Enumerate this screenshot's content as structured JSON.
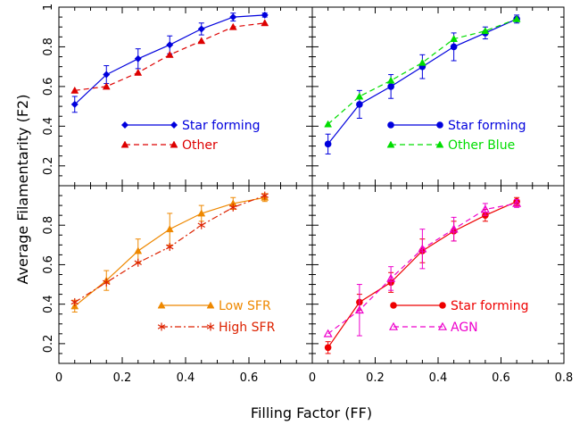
{
  "figure": {
    "xlabel": "Filling Factor (FF)",
    "ylabel": "Average Filamentarity (F2)"
  },
  "chart_data": [
    {
      "type": "line",
      "panel": "top-left",
      "xlim": [
        0,
        0.8
      ],
      "ylim": [
        0.1,
        1.0
      ],
      "x_ticks": [
        "0",
        "0.2",
        "0.4",
        "0.6",
        "0.8"
      ],
      "y_ticks": [
        0.2,
        0.4,
        0.6,
        0.8,
        1
      ],
      "y_tick_labels": [
        "0.2",
        "0.4",
        "0.6",
        "0.8",
        "1"
      ],
      "show_x_tick_labels": false,
      "legend_placement": "center-left",
      "series": [
        {
          "name": "Star forming",
          "color": "#0000dd",
          "dash": "solid",
          "marker": "diamond",
          "x": [
            0.05,
            0.15,
            0.25,
            0.35,
            0.45,
            0.55,
            0.65
          ],
          "y": [
            0.51,
            0.66,
            0.74,
            0.81,
            0.89,
            0.95,
            0.96
          ],
          "err": [
            0.04,
            0.045,
            0.05,
            0.045,
            0.03,
            0.02,
            0.01
          ]
        },
        {
          "name": "Other",
          "color": "#dd0000",
          "dash": "dashed",
          "marker": "triangle",
          "x": [
            0.05,
            0.15,
            0.25,
            0.35,
            0.45,
            0.55,
            0.65
          ],
          "y": [
            0.58,
            0.6,
            0.67,
            0.76,
            0.83,
            0.9,
            0.92
          ],
          "err": []
        }
      ]
    },
    {
      "type": "line",
      "panel": "top-right",
      "xlim": [
        0,
        0.8
      ],
      "ylim": [
        0.1,
        1.0
      ],
      "x_ticks": [
        "0",
        "0.2",
        "0.4",
        "0.6",
        "0.8"
      ],
      "y_ticks": [
        0.2,
        0.4,
        0.6,
        0.8,
        1
      ],
      "show_x_tick_labels": false,
      "show_y_tick_labels": false,
      "legend_placement": "center",
      "series": [
        {
          "name": "Star forming",
          "color": "#0000dd",
          "dash": "solid",
          "marker": "circle",
          "x": [
            0.05,
            0.15,
            0.25,
            0.35,
            0.45,
            0.55,
            0.65
          ],
          "y": [
            0.31,
            0.51,
            0.6,
            0.7,
            0.8,
            0.87,
            0.94
          ],
          "err": [
            0.05,
            0.07,
            0.06,
            0.06,
            0.07,
            0.03,
            0.02
          ]
        },
        {
          "name": "Other Blue",
          "color": "#00dd00",
          "dash": "dashed",
          "marker": "triangle",
          "x": [
            0.05,
            0.15,
            0.25,
            0.35,
            0.45,
            0.55,
            0.65
          ],
          "y": [
            0.41,
            0.55,
            0.63,
            0.72,
            0.84,
            0.88,
            0.94
          ],
          "err": []
        }
      ]
    },
    {
      "type": "line",
      "panel": "bottom-left",
      "xlim": [
        0,
        0.8
      ],
      "ylim": [
        0.1,
        1.0
      ],
      "x_ticks": [
        "0",
        "0.2",
        "0.4",
        "0.6"
      ],
      "y_ticks": [
        0.2,
        0.4,
        0.6,
        0.8
      ],
      "y_tick_labels": [
        "0.2",
        "0.4",
        "0.6",
        "0.8"
      ],
      "legend_placement": "lower-center",
      "series": [
        {
          "name": "Low SFR",
          "color": "#ee8800",
          "dash": "solid",
          "marker": "triangle",
          "x": [
            0.05,
            0.15,
            0.25,
            0.35,
            0.45,
            0.55,
            0.65
          ],
          "y": [
            0.39,
            0.52,
            0.67,
            0.78,
            0.86,
            0.91,
            0.94
          ],
          "err": [
            0.03,
            0.05,
            0.06,
            0.08,
            0.04,
            0.03,
            0.02
          ]
        },
        {
          "name": "High SFR",
          "color": "#dd2200",
          "dash": "dashdot",
          "marker": "asterisk",
          "x": [
            0.05,
            0.15,
            0.25,
            0.35,
            0.45,
            0.55,
            0.65
          ],
          "y": [
            0.41,
            0.51,
            0.61,
            0.69,
            0.8,
            0.89,
            0.95
          ],
          "err": []
        }
      ]
    },
    {
      "type": "line",
      "panel": "bottom-right",
      "xlim": [
        0,
        0.8
      ],
      "ylim": [
        0.1,
        1.0
      ],
      "x_ticks": [
        "0",
        "0.2",
        "0.4",
        "0.6",
        "0.8"
      ],
      "y_ticks": [
        0.2,
        0.4,
        0.6,
        0.8
      ],
      "show_y_tick_labels": false,
      "legend_placement": "lower-center",
      "series": [
        {
          "name": "Star forming",
          "color": "#ee0000",
          "dash": "solid",
          "marker": "circle",
          "x": [
            0.05,
            0.15,
            0.25,
            0.35,
            0.45,
            0.55,
            0.65
          ],
          "y": [
            0.18,
            0.41,
            0.51,
            0.67,
            0.77,
            0.85,
            0.92
          ],
          "err": [
            0.03,
            0.04,
            0.05,
            0.06,
            0.05,
            0.03,
            0.02
          ]
        },
        {
          "name": "AGN",
          "color": "#ee00cc",
          "dash": "dashed",
          "marker": "open-triangle",
          "x": [
            0.05,
            0.15,
            0.25,
            0.35,
            0.45,
            0.55,
            0.65
          ],
          "y": [
            0.25,
            0.37,
            0.53,
            0.68,
            0.78,
            0.88,
            0.91
          ],
          "err": [
            0.0,
            0.13,
            0.06,
            0.1,
            0.06,
            0.03,
            0.02
          ]
        }
      ]
    }
  ]
}
